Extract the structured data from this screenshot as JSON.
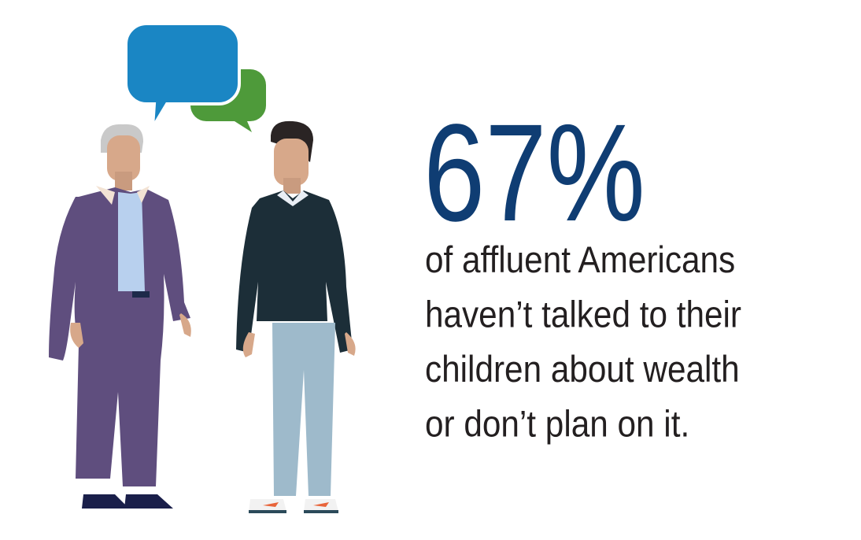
{
  "stat": "67%",
  "lines": [
    "of affluent Americans",
    "haven’t talked to their",
    "children about wealth",
    "or don’t plan on it."
  ]
}
